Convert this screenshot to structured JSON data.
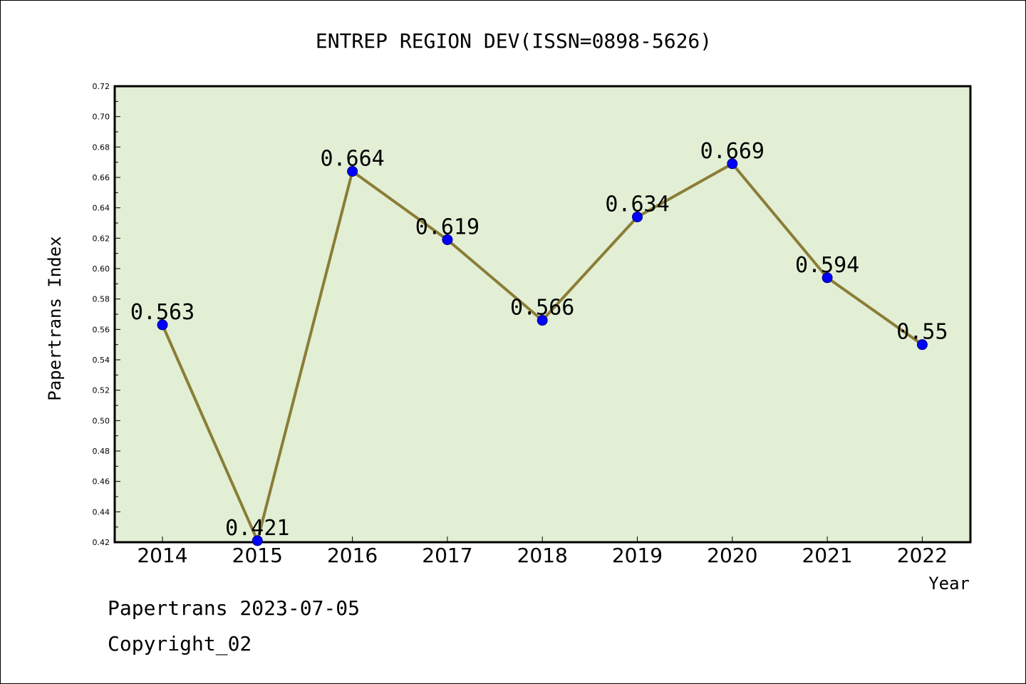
{
  "chart_data": {
    "type": "line",
    "title": "ENTREP REGION DEV(ISSN=0898-5626)",
    "xlabel": "Year",
    "ylabel": "Papertrans Index",
    "categories": [
      "2014",
      "2015",
      "2016",
      "2017",
      "2018",
      "2019",
      "2020",
      "2021",
      "2022"
    ],
    "series": [
      {
        "values": [
          0.563,
          0.421,
          0.664,
          0.619,
          0.566,
          0.634,
          0.669,
          0.594,
          0.55
        ],
        "labels": [
          "0.563",
          "0.421",
          "0.664",
          "0.619",
          "0.566",
          "0.634",
          "0.669",
          "0.594",
          "0.55"
        ]
      }
    ],
    "ylim": [
      0.42,
      0.72
    ],
    "yticks": [
      "0.42",
      "0.44",
      "0.46",
      "0.48",
      "0.50",
      "0.52",
      "0.54",
      "0.56",
      "0.58",
      "0.60",
      "0.62",
      "0.64",
      "0.66",
      "0.68",
      "0.70",
      "0.72"
    ],
    "grid": false,
    "legend": "none",
    "colors": {
      "plot_background": "#e2efd5",
      "line": "#8b7d37",
      "marker": "#0000ff"
    }
  },
  "footer": {
    "line1": "Papertrans 2023-07-05",
    "line2": "Copyright_02"
  }
}
